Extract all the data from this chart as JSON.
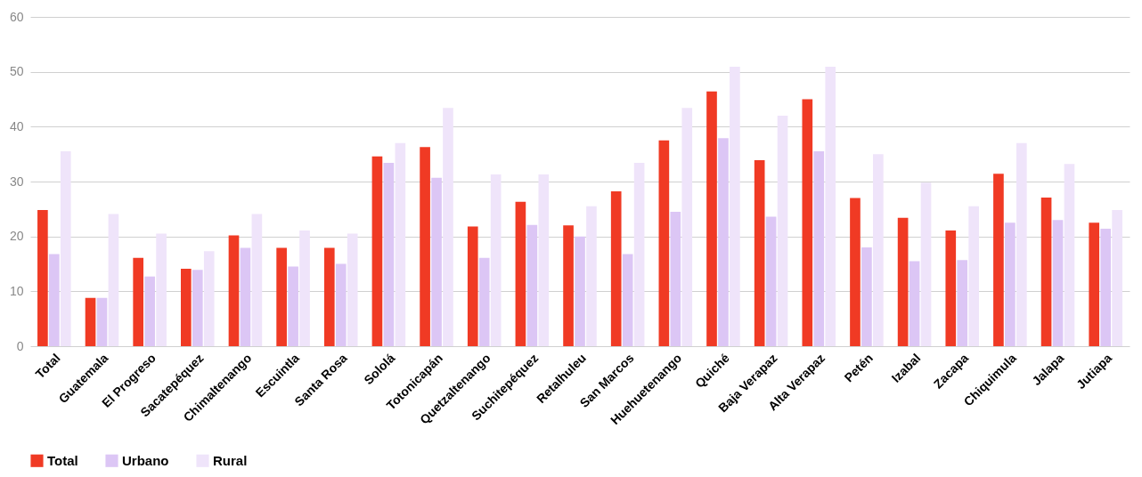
{
  "chart_data": {
    "type": "bar",
    "categories": [
      "Total",
      "Guatemala",
      "El Progreso",
      "Sacatepéquez",
      "Chimaltenango",
      "Escuintla",
      "Santa Rosa",
      "Sololá",
      "Totonicapán",
      "Quetzaltenango",
      "Suchitepéquez",
      "Retalhuleu",
      "San Marcos",
      "Huehuetenango",
      "Quiché",
      "Baja Verapaz",
      "Alta Verapaz",
      "Petén",
      "Izabal",
      "Zacapa",
      "Chiquimula",
      "Jalapa",
      "Jutiapa"
    ],
    "series": [
      {
        "name": "Total",
        "color": "#f03a24",
        "values": [
          24.8,
          8.8,
          16.1,
          14.1,
          20.2,
          17.9,
          17.9,
          34.6,
          36.3,
          21.8,
          26.3,
          22,
          28.2,
          37.5,
          46.4,
          33.9,
          45,
          27,
          23.4,
          21.1,
          31.4,
          27.1,
          22.5
        ]
      },
      {
        "name": "Urbano",
        "color": "#dcc6f5",
        "values": [
          16.8,
          8.8,
          12.7,
          13.9,
          17.9,
          14.5,
          15,
          33.4,
          30.7,
          16.1,
          22.1,
          20,
          16.8,
          24.5,
          37.9,
          23.6,
          35.5,
          18,
          15.5,
          15.7,
          22.5,
          23,
          21.4
        ]
      },
      {
        "name": "Rural",
        "color": "#efe4fa",
        "values": [
          35.5,
          24.1,
          20.5,
          17.3,
          24.1,
          21.1,
          20.5,
          37,
          43.4,
          31.3,
          31.3,
          25.5,
          33.4,
          43.4,
          50.9,
          42,
          50.9,
          35,
          29.8,
          25.5,
          37,
          33.2,
          24.8
        ]
      }
    ],
    "ylim": [
      0,
      60
    ],
    "yticks": [
      0,
      10,
      20,
      30,
      40,
      50,
      60
    ],
    "grid": "y",
    "legend": "bottom"
  }
}
